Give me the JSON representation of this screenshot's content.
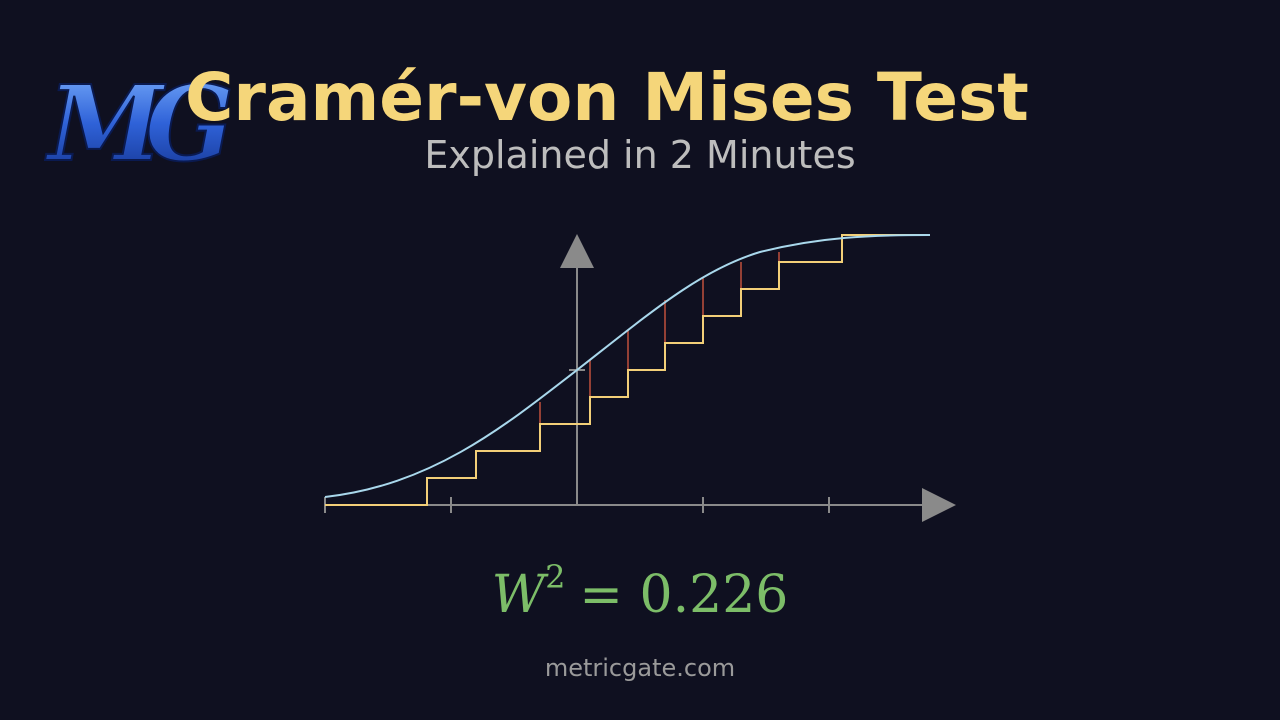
{
  "logo": "MG",
  "header": {
    "title": "Cramér-von Mises Test",
    "subtitle": "Explained in 2 Minutes"
  },
  "formula": {
    "symbol": "W",
    "exponent": "2",
    "rest": "= 0.226"
  },
  "footer": {
    "site": "metricgate.com"
  }
}
